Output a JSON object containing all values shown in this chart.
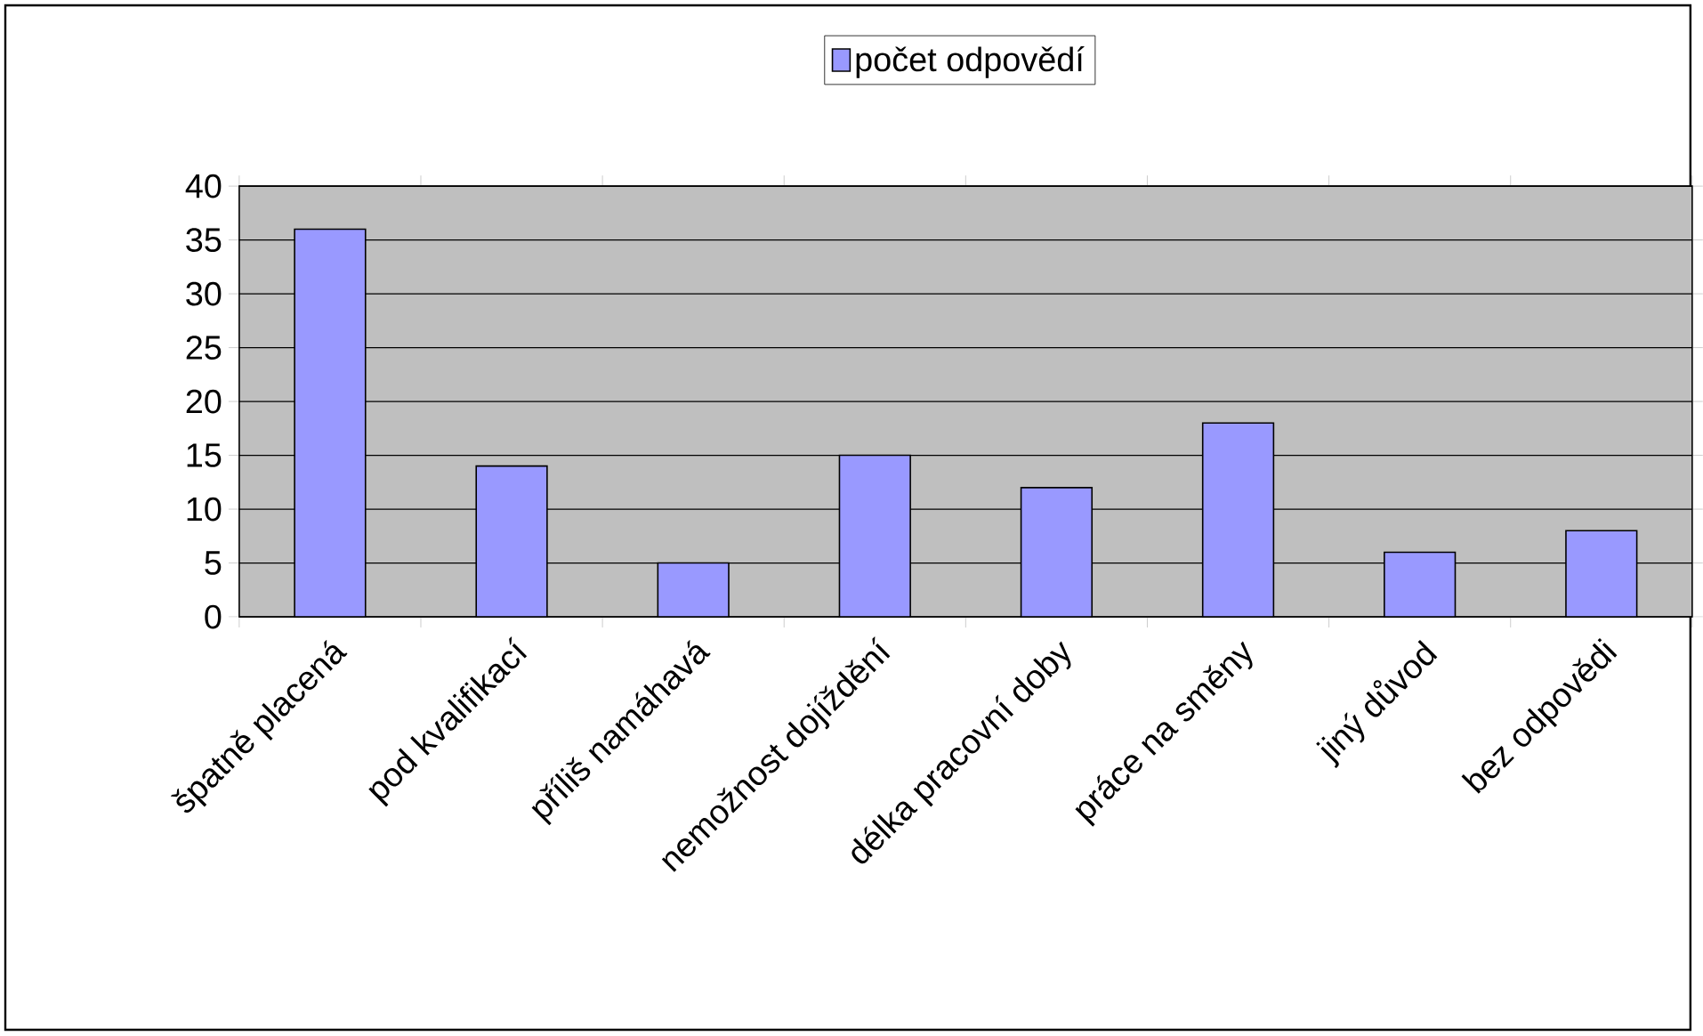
{
  "chart_data": {
    "type": "bar",
    "categories": [
      "špatně placená",
      "pod kvalifikací",
      "příliš namáhavá",
      "nemožnost dojíždění",
      "délka pracovní doby",
      "práce na směny",
      "jiný důvod",
      "bez odpovědi"
    ],
    "series": [
      {
        "name": "počet odpovědí",
        "color": "#9999ff",
        "values": [
          36,
          14,
          5,
          15,
          12,
          18,
          6,
          8
        ]
      }
    ],
    "ylim": [
      0,
      40
    ],
    "yticks": [
      0,
      5,
      10,
      15,
      20,
      25,
      30,
      35,
      40
    ],
    "grid": "y",
    "legend": "top"
  }
}
